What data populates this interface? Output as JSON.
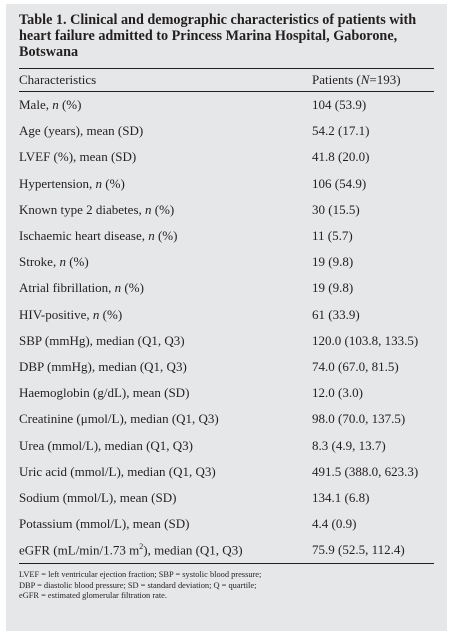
{
  "table": {
    "title": "Table 1. Clinical and demographic characteristics of patients with heart failure admitted to Princess Marina Hospital, Gaborone, Botswana",
    "header": {
      "characteristics": "Characteristics",
      "patients_prefix": "Patients (",
      "patients_n": "N",
      "patients_suffix": "=193)"
    },
    "rows": [
      {
        "label": "Male, ",
        "italic": "n",
        "rest": " (%)",
        "value": "104 (53.9)"
      },
      {
        "label": "Age (years), mean (SD)",
        "italic": "",
        "rest": "",
        "value": "54.2 (17.1)"
      },
      {
        "label": "LVEF (%), mean (SD)",
        "italic": "",
        "rest": "",
        "value": "41.8 (20.0)"
      },
      {
        "label": "Hypertension, ",
        "italic": "n",
        "rest": " (%)",
        "value": "106 (54.9)"
      },
      {
        "label": "Known type 2 diabetes, ",
        "italic": "n",
        "rest": " (%)",
        "value": "30 (15.5)"
      },
      {
        "label": "Ischaemic heart disease, ",
        "italic": "n",
        "rest": " (%)",
        "value": "11 (5.7)"
      },
      {
        "label": "Stroke, ",
        "italic": "n",
        "rest": " (%)",
        "value": "19 (9.8)"
      },
      {
        "label": "Atrial fibrillation, ",
        "italic": "n",
        "rest": " (%)",
        "value": "19 (9.8)"
      },
      {
        "label": "HIV-positive, ",
        "italic": "n",
        "rest": " (%)",
        "value": "61 (33.9)"
      },
      {
        "label": "SBP (mmHg), median (Q1, Q3)",
        "italic": "",
        "rest": "",
        "value": "120.0 (103.8, 133.5)"
      },
      {
        "label": "DBP (mmHg), median (Q1, Q3)",
        "italic": "",
        "rest": "",
        "value": "74.0 (67.0, 81.5)"
      },
      {
        "label": "Haemoglobin (g/dL), mean (SD)",
        "italic": "",
        "rest": "",
        "value": "12.0 (3.0)"
      },
      {
        "label": "Creatinine (μmol/L), median (Q1, Q3)",
        "italic": "",
        "rest": "",
        "value": "98.0 (70.0, 137.5)"
      },
      {
        "label": "Urea (mmol/L), median (Q1, Q3)",
        "italic": "",
        "rest": "",
        "value": "8.3 (4.9, 13.7)"
      },
      {
        "label": "Uric acid (mmol/L), median (Q1, Q3)",
        "italic": "",
        "rest": "",
        "value": "491.5 (388.0, 623.3)"
      },
      {
        "label": "Sodium (mmol/L), mean (SD)",
        "italic": "",
        "rest": "",
        "value": "134.1 (6.8)"
      },
      {
        "label": "Potassium (mmol/L), mean (SD)",
        "italic": "",
        "rest": "",
        "value": "4.4 (0.9)"
      },
      {
        "label": "eGFR (mL/min/1.73 m",
        "sup": "2",
        "rest": "), median (Q1, Q3)",
        "value": "75.9 (52.5, 112.4)"
      }
    ],
    "footnote": [
      "LVEF = left ventricular ejection fraction; SBP = systolic blood pressure;",
      "DBP = diastolic blood pressure; SD = standard deviation; Q = quartile;",
      "eGFR = estimated glomerular filtration rate."
    ]
  }
}
